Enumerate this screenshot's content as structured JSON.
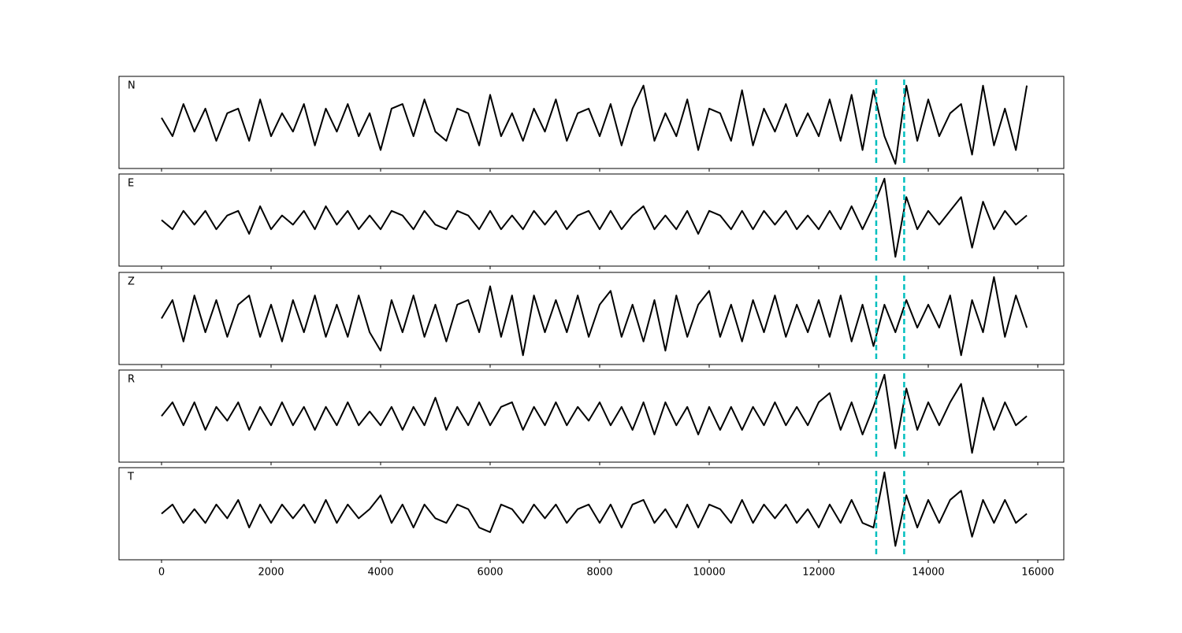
{
  "chart_data": {
    "type": "line",
    "layout": "stacked",
    "x": [
      0,
      200,
      400,
      600,
      800,
      1000,
      1200,
      1400,
      1600,
      1800,
      2000,
      2200,
      2400,
      2600,
      2800,
      3000,
      3200,
      3400,
      3600,
      3800,
      4000,
      4200,
      4400,
      4600,
      4800,
      5000,
      5200,
      5400,
      5600,
      5800,
      6000,
      6200,
      6400,
      6600,
      6800,
      7000,
      7200,
      7400,
      7600,
      7800,
      8000,
      8200,
      8400,
      8600,
      8800,
      9000,
      9200,
      9400,
      9600,
      9800,
      10000,
      10200,
      10400,
      10600,
      10800,
      11000,
      11200,
      11400,
      11600,
      11800,
      12000,
      12200,
      12400,
      12600,
      12800,
      13000,
      13200,
      13400,
      13600,
      13800,
      14000,
      14200,
      14400,
      14600,
      14800,
      15000,
      15200,
      15400,
      15600,
      15800
    ],
    "series": [
      {
        "name": "N",
        "color": "#000000",
        "values": [
          0.1,
          -0.3,
          0.4,
          -0.2,
          0.3,
          -0.4,
          0.2,
          0.3,
          -0.4,
          0.5,
          -0.3,
          0.2,
          -0.2,
          0.4,
          -0.5,
          0.3,
          -0.2,
          0.4,
          -0.3,
          0.2,
          -0.6,
          0.3,
          0.4,
          -0.3,
          0.5,
          -0.2,
          -0.4,
          0.3,
          0.2,
          -0.5,
          0.6,
          -0.3,
          0.2,
          -0.4,
          0.3,
          -0.2,
          0.5,
          -0.4,
          0.2,
          0.3,
          -0.3,
          0.4,
          -0.5,
          0.3,
          0.8,
          -0.4,
          0.2,
          -0.3,
          0.5,
          -0.6,
          0.3,
          0.2,
          -0.4,
          0.7,
          -0.5,
          0.3,
          -0.2,
          0.4,
          -0.3,
          0.2,
          -0.3,
          0.5,
          -0.4,
          0.6,
          -0.6,
          0.7,
          -0.3,
          -0.9,
          0.8,
          -0.4,
          0.5,
          -0.3,
          0.2,
          0.4,
          -0.7,
          0.8,
          -0.5,
          0.3,
          -0.6,
          0.8
        ]
      },
      {
        "name": "E",
        "color": "#000000",
        "values": [
          0.0,
          -0.2,
          0.2,
          -0.1,
          0.2,
          -0.2,
          0.1,
          0.2,
          -0.3,
          0.3,
          -0.2,
          0.1,
          -0.1,
          0.2,
          -0.2,
          0.3,
          -0.1,
          0.2,
          -0.2,
          0.1,
          -0.2,
          0.2,
          0.1,
          -0.2,
          0.2,
          -0.1,
          -0.2,
          0.2,
          0.1,
          -0.2,
          0.2,
          -0.2,
          0.1,
          -0.2,
          0.2,
          -0.1,
          0.2,
          -0.2,
          0.1,
          0.2,
          -0.2,
          0.2,
          -0.2,
          0.1,
          0.3,
          -0.2,
          0.1,
          -0.2,
          0.2,
          -0.3,
          0.2,
          0.1,
          -0.2,
          0.2,
          -0.2,
          0.2,
          -0.1,
          0.2,
          -0.2,
          0.1,
          -0.2,
          0.2,
          -0.2,
          0.3,
          -0.2,
          0.3,
          0.9,
          -0.8,
          0.5,
          -0.2,
          0.2,
          -0.1,
          0.2,
          0.5,
          -0.6,
          0.4,
          -0.2,
          0.2,
          -0.1,
          0.1
        ]
      },
      {
        "name": "Z",
        "color": "#000000",
        "values": [
          0.0,
          0.4,
          -0.5,
          0.5,
          -0.3,
          0.4,
          -0.4,
          0.3,
          0.5,
          -0.4,
          0.3,
          -0.5,
          0.4,
          -0.3,
          0.5,
          -0.4,
          0.3,
          -0.4,
          0.5,
          -0.3,
          -0.7,
          0.4,
          -0.3,
          0.5,
          -0.4,
          0.3,
          -0.5,
          0.3,
          0.4,
          -0.3,
          0.7,
          -0.4,
          0.5,
          -0.8,
          0.5,
          -0.3,
          0.4,
          -0.3,
          0.5,
          -0.4,
          0.3,
          0.6,
          -0.4,
          0.3,
          -0.5,
          0.4,
          -0.7,
          0.5,
          -0.4,
          0.3,
          0.6,
          -0.4,
          0.3,
          -0.5,
          0.4,
          -0.3,
          0.5,
          -0.4,
          0.3,
          -0.3,
          0.4,
          -0.4,
          0.5,
          -0.5,
          0.3,
          -0.6,
          0.3,
          -0.3,
          0.4,
          -0.2,
          0.3,
          -0.2,
          0.5,
          -0.8,
          0.4,
          -0.3,
          0.9,
          -0.4,
          0.5,
          -0.2
        ]
      },
      {
        "name": "R",
        "color": "#000000",
        "values": [
          0.0,
          0.3,
          -0.2,
          0.3,
          -0.3,
          0.2,
          -0.1,
          0.3,
          -0.3,
          0.2,
          -0.2,
          0.3,
          -0.2,
          0.2,
          -0.3,
          0.2,
          -0.2,
          0.3,
          -0.2,
          0.1,
          -0.2,
          0.2,
          -0.3,
          0.2,
          -0.2,
          0.4,
          -0.3,
          0.2,
          -0.2,
          0.3,
          -0.2,
          0.2,
          0.3,
          -0.3,
          0.2,
          -0.2,
          0.3,
          -0.2,
          0.2,
          -0.1,
          0.3,
          -0.2,
          0.2,
          -0.3,
          0.3,
          -0.4,
          0.3,
          -0.2,
          0.2,
          -0.4,
          0.2,
          -0.3,
          0.2,
          -0.3,
          0.2,
          -0.2,
          0.3,
          -0.2,
          0.2,
          -0.2,
          0.3,
          0.5,
          -0.3,
          0.3,
          -0.4,
          0.2,
          0.9,
          -0.7,
          0.6,
          -0.3,
          0.3,
          -0.2,
          0.3,
          0.7,
          -0.8,
          0.4,
          -0.3,
          0.3,
          -0.2,
          0.0
        ]
      },
      {
        "name": "T",
        "color": "#000000",
        "values": [
          0.0,
          0.2,
          -0.2,
          0.1,
          -0.2,
          0.2,
          -0.1,
          0.3,
          -0.3,
          0.2,
          -0.2,
          0.2,
          -0.1,
          0.2,
          -0.2,
          0.3,
          -0.2,
          0.2,
          -0.1,
          0.1,
          0.4,
          -0.2,
          0.2,
          -0.3,
          0.2,
          -0.1,
          -0.2,
          0.2,
          0.1,
          -0.3,
          -0.4,
          0.2,
          0.1,
          -0.2,
          0.2,
          -0.1,
          0.2,
          -0.2,
          0.1,
          0.2,
          -0.2,
          0.2,
          -0.3,
          0.2,
          0.3,
          -0.2,
          0.1,
          -0.3,
          0.2,
          -0.3,
          0.2,
          0.1,
          -0.2,
          0.3,
          -0.2,
          0.2,
          -0.1,
          0.2,
          -0.2,
          0.1,
          -0.3,
          0.2,
          -0.2,
          0.3,
          -0.2,
          -0.3,
          0.9,
          -0.7,
          0.4,
          -0.3,
          0.3,
          -0.2,
          0.3,
          0.5,
          -0.5,
          0.3,
          -0.2,
          0.3,
          -0.2,
          0.0
        ]
      }
    ],
    "markers": {
      "values": [
        13050,
        13560
      ],
      "color": "#00bfbf"
    },
    "xlim": [
      -777,
      16475
    ],
    "xticks": [
      0,
      2000,
      4000,
      6000,
      8000,
      10000,
      12000,
      14000,
      16000
    ],
    "ylim": [
      -1,
      1
    ]
  }
}
